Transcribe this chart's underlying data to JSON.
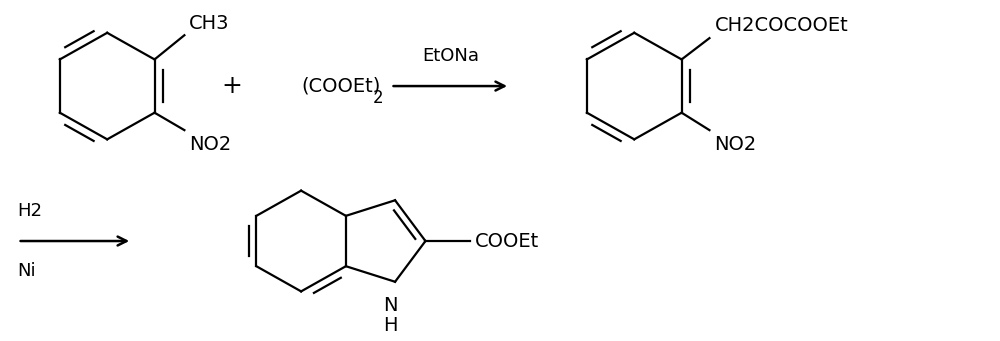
{
  "bg_color": "#ffffff",
  "fig_width": 10.0,
  "fig_height": 3.41,
  "dpi": 100,
  "reaction1_reagent": "EtONa",
  "reaction1_reactant2": "(COOEt)2",
  "reaction2_reagent_top": "H2",
  "reaction2_reagent_bot": "Ni",
  "product1_sub1": "CH2COCOOEt",
  "product1_sub2": "NO2",
  "reactant1_sub1": "CH3",
  "reactant1_sub2": "NO2",
  "product2_sub": "COOEt",
  "font_size_main": 14,
  "font_size_label": 13,
  "lw": 1.6
}
